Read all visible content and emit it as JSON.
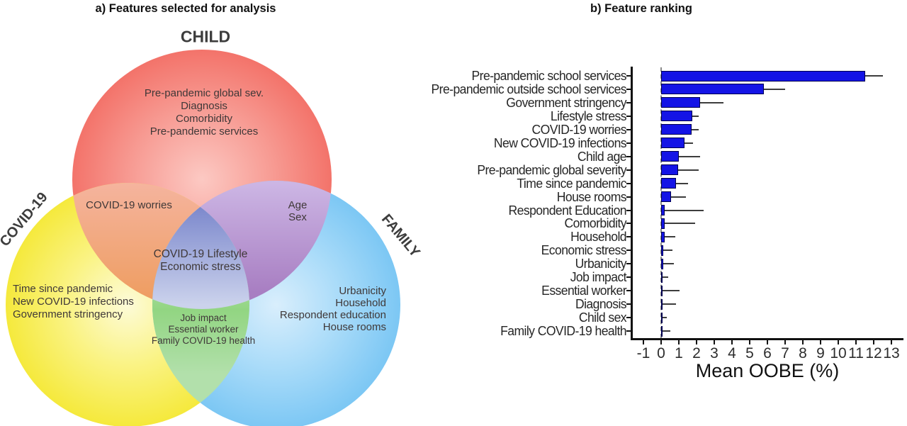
{
  "panel_a": {
    "title": "a) Features selected for analysis",
    "sets": {
      "child": "CHILD",
      "covid": "COVID-19",
      "family": "FAMILY"
    },
    "regions": {
      "child_only": [
        "Pre-pandemic global sev.",
        "Diagnosis",
        "Comorbidity",
        "Pre-pandemic services"
      ],
      "child_covid": [
        "COVID-19 worries"
      ],
      "child_family": [
        "Age",
        "Sex"
      ],
      "center": [
        "COVID-19 Lifestyle",
        "Economic stress"
      ],
      "covid_only": [
        "Time since pandemic",
        "New COVID-19 infections",
        "Government stringency"
      ],
      "covid_family": [
        "Job impact",
        "Essential worker",
        "Family COVID-19 health"
      ],
      "family_only": [
        "Urbanicity",
        "Household",
        "Respondent education",
        "House rooms"
      ]
    },
    "colors": {
      "child_circle": "#f3736a",
      "covid_circle": "#f5e93c",
      "family_circle": "#7cc7f4",
      "child_covid_overlap": "#ee9c5e",
      "child_family_overlap": "#a87fc3",
      "covid_family_overlap": "#92d582",
      "center_overlap": "#7b87ce"
    }
  },
  "panel_b": {
    "title": "b) Feature ranking"
  },
  "chart_data": {
    "type": "bar",
    "orientation": "horizontal",
    "title": "b) Feature ranking",
    "xlabel": "Mean OOBE (%)",
    "ylabel": "",
    "xlim": [
      -1.7,
      13.6
    ],
    "xticks": [
      -1,
      0,
      1,
      2,
      3,
      4,
      5,
      6,
      7,
      8,
      9,
      10,
      11,
      12,
      13
    ],
    "grid": false,
    "legend": false,
    "reference_line_x": 0,
    "bar_color": "#1414e6",
    "categories": [
      "Pre-pandemic school services",
      "Pre-pandemic outside school services",
      "Government stringency",
      "Lifestyle stress",
      "COVID-19 worries",
      "New COVID-19 infections",
      "Child age",
      "Pre-pandemic global severity",
      "Time since pandemic",
      "House rooms",
      "Respondent Education",
      "Comorbidity",
      "Household",
      "Economic stress",
      "Urbanicity",
      "Job impact",
      "Essential worker",
      "Diagnosis",
      "Child sex",
      "Family COVID-19 health"
    ],
    "values": [
      11.5,
      5.8,
      2.2,
      1.75,
      1.7,
      1.3,
      1.0,
      0.95,
      0.85,
      0.55,
      0.18,
      0.18,
      0.18,
      0.1,
      0.12,
      0.04,
      0.04,
      0.03,
      0.03,
      0.04
    ],
    "error_high": [
      12.5,
      7.0,
      3.5,
      2.1,
      2.1,
      1.8,
      2.2,
      2.1,
      1.5,
      1.4,
      2.4,
      1.9,
      0.8,
      0.65,
      0.7,
      0.4,
      1.05,
      0.85,
      0.3,
      0.5
    ]
  }
}
